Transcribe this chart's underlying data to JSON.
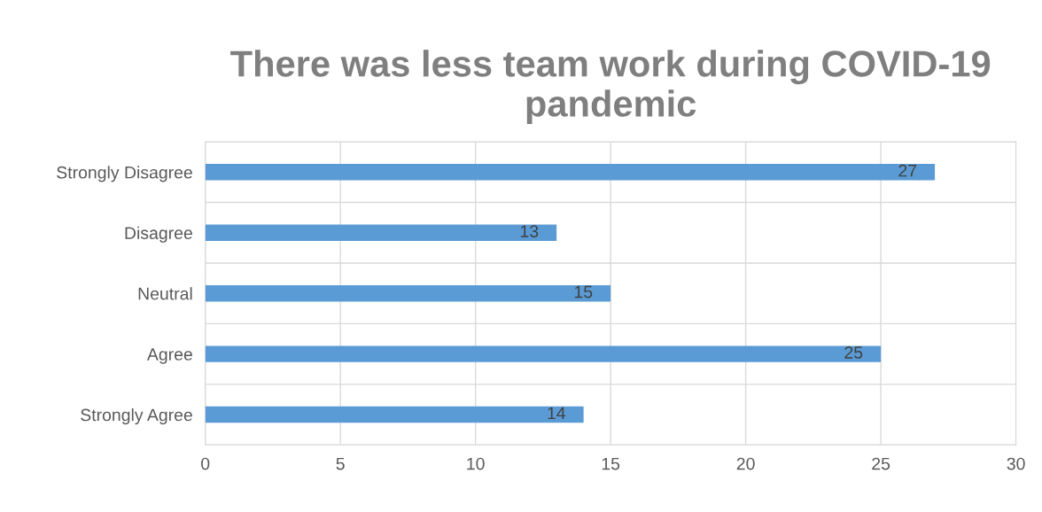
{
  "chart_data": {
    "type": "bar",
    "orientation": "horizontal",
    "title": "There was less team work during COVID-19 pandemic",
    "categories": [
      "Strongly Disagree",
      "Disagree",
      "Neutral",
      "Agree",
      "Strongly Agree"
    ],
    "values": [
      27,
      13,
      15,
      25,
      14
    ],
    "color": "#5b9bd5",
    "xlim": [
      0,
      30
    ],
    "xticks": [
      0,
      5,
      10,
      15,
      20,
      25,
      30
    ],
    "grid": true,
    "data_labels": true
  }
}
